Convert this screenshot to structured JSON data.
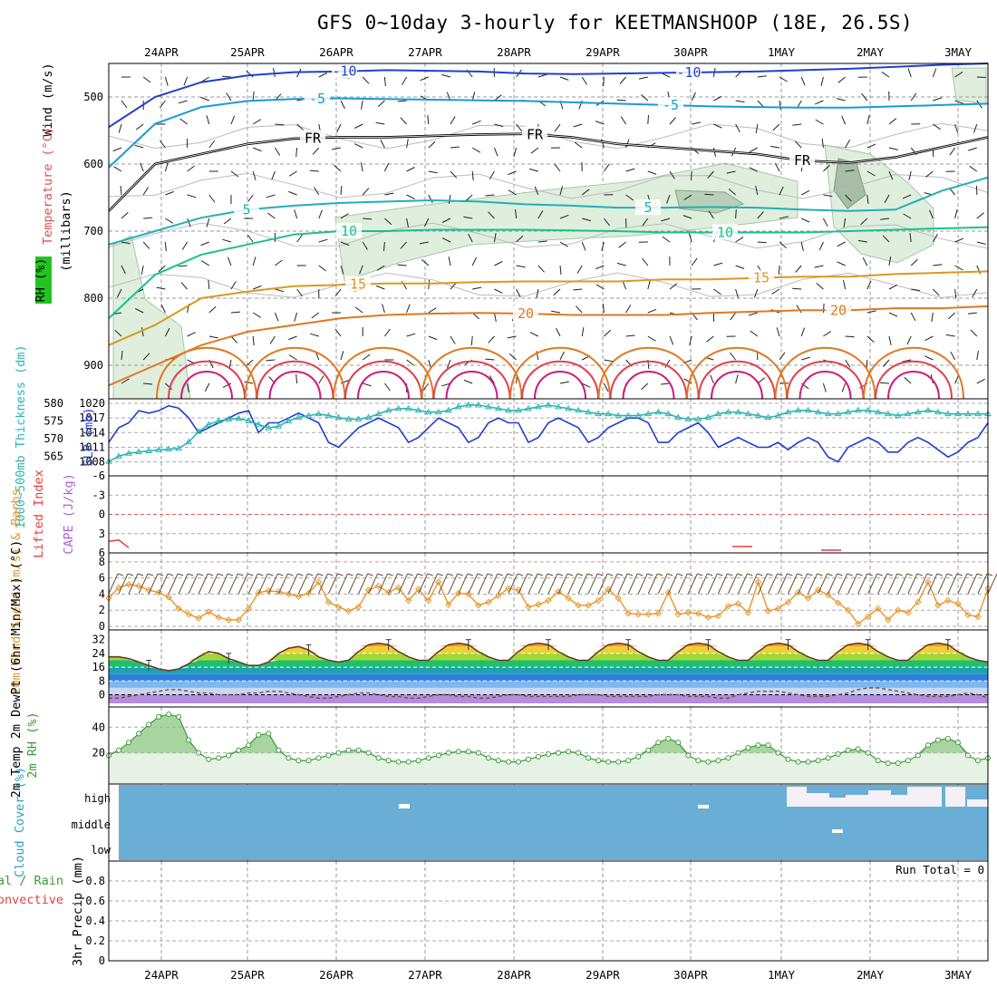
{
  "title": "GFS 0~10day 3-hourly for KEETMANSHOOP (18E, 26.5S)",
  "dates": [
    "24APR",
    "25APR",
    "26APR",
    "27APR",
    "28APR",
    "29APR",
    "30APR",
    "1MAY",
    "2MAY",
    "3MAY"
  ],
  "colors": {
    "slp": "#1f3fcf",
    "thickness": "#2cb5b5",
    "wind": "#e8962a",
    "rh": "#3a9a3a",
    "cloud": "#6aaed6",
    "lifted": "#e04040",
    "cape": "#b060d0"
  },
  "chart_data": [
    {
      "type": "heatmap",
      "name": "upper-air cross-section",
      "panel_labels": [
        "Wind (m/s)",
        "Temperature (°C)",
        "RH (%)",
        "(millibars)"
      ],
      "y": {
        "ticks": [
          500,
          600,
          700,
          800,
          900
        ],
        "lim": [
          450,
          950
        ]
      },
      "contours": [
        {
          "level": "-10",
          "label": "-10",
          "color": "#2040d0",
          "p": [
            545,
            500,
            478,
            468,
            463,
            462,
            460,
            461,
            462,
            465,
            466,
            465,
            464,
            463,
            462,
            460,
            458,
            455,
            452,
            450
          ]
        },
        {
          "level": "-5",
          "label": "-5",
          "color": "#1a9ad8",
          "p": [
            605,
            540,
            515,
            506,
            503,
            502,
            503,
            504,
            505,
            506,
            508,
            510,
            512,
            514,
            515,
            516,
            516,
            514,
            512,
            510
          ]
        },
        {
          "level": "0",
          "label": "FR",
          "color": "#000000",
          "p": [
            670,
            600,
            585,
            570,
            562,
            560,
            560,
            558,
            556,
            555,
            560,
            570,
            575,
            580,
            585,
            595,
            598,
            590,
            575,
            560
          ]
        },
        {
          "level": "5",
          "label": "5",
          "color": "#20b0b8",
          "p": [
            720,
            700,
            680,
            668,
            662,
            658,
            656,
            654,
            656,
            660,
            662,
            665,
            665,
            664,
            665,
            668,
            670,
            668,
            640,
            620
          ]
        },
        {
          "level": "10",
          "label": "10",
          "color": "#1ac090",
          "p": [
            830,
            765,
            735,
            720,
            705,
            700,
            700,
            698,
            698,
            698,
            699,
            700,
            702,
            702,
            702,
            702,
            700,
            698,
            696,
            694
          ]
        },
        {
          "level": "15",
          "label": "15",
          "color": "#d89a20",
          "p": [
            870,
            840,
            800,
            790,
            782,
            780,
            778,
            778,
            776,
            775,
            775,
            775,
            772,
            772,
            770,
            768,
            768,
            764,
            762,
            760
          ]
        },
        {
          "level": "20",
          "label": "20",
          "color": "#e07820",
          "p": [
            930,
            900,
            870,
            850,
            840,
            830,
            825,
            823,
            822,
            823,
            825,
            825,
            825,
            822,
            820,
            818,
            818,
            815,
            815,
            812
          ]
        }
      ]
    },
    {
      "type": "line",
      "name": "SLP and thickness",
      "ylabel_left": "1000~500mb Thickness (dm)",
      "ylabel_right": "SLP (mb)",
      "yticks_thickness": [
        565,
        570,
        575,
        580
      ],
      "yticks_slp": [
        1008,
        1011,
        1014,
        1017,
        1020
      ],
      "ylim_thickness": [
        562,
        580
      ],
      "ylim_slp": [
        1007,
        1020
      ],
      "series": [
        {
          "name": "SLP (mb)",
          "values": [
            1012,
            1015,
            1016,
            1018.5,
            1018,
            1018.5,
            1019.5,
            1019,
            1017,
            1014,
            1015,
            1016,
            1017,
            1018,
            1018.5,
            1014,
            1016,
            1016,
            1017,
            1018,
            1017,
            1016,
            1012,
            1011,
            1013,
            1015,
            1016,
            1017,
            1016,
            1015,
            1012,
            1013,
            1015,
            1017,
            1016,
            1015,
            1012,
            1013,
            1016,
            1017,
            1016,
            1016,
            1012,
            1013,
            1016,
            1017,
            1016,
            1015,
            1012,
            1013,
            1015,
            1016,
            1017,
            1017,
            1016,
            1012,
            1012,
            1014,
            1015,
            1016,
            1014,
            1011,
            1012,
            1013,
            1012,
            1011,
            1011,
            1012,
            1010.5,
            1012,
            1013,
            1012,
            1009,
            1008,
            1011,
            1012,
            1013,
            1012,
            1010,
            1010,
            1012,
            1013,
            1012,
            1010.5,
            1009,
            1010,
            1012,
            1013,
            1016
          ]
        },
        {
          "name": "Thickness (dm)",
          "values": [
            563.5,
            565,
            565.8,
            566.2,
            566.5,
            566.8,
            567,
            567.2,
            569,
            572,
            574,
            575,
            575.5,
            575.7,
            575,
            574,
            573,
            573.5,
            575,
            576,
            576.5,
            577,
            576.5,
            576,
            575.5,
            575.5,
            576,
            577,
            578,
            578.5,
            578.5,
            578,
            577.5,
            577.5,
            578,
            579,
            579.5,
            579.5,
            579,
            578.5,
            578,
            578,
            578.5,
            579,
            579.5,
            579,
            578.5,
            578,
            577.5,
            577,
            577,
            576.5,
            576.5,
            576.5,
            577,
            577.5,
            577,
            576,
            575.5,
            575.5,
            576,
            577,
            577.5,
            577.5,
            577,
            576.5,
            576,
            576.5,
            577.5,
            578,
            578,
            577.5,
            577,
            577,
            577.5,
            578,
            578,
            577.5,
            577,
            576.5,
            577,
            577.5,
            578,
            577.5,
            577,
            577,
            577,
            577,
            577
          ]
        }
      ]
    },
    {
      "type": "line",
      "name": "Lifted index and CAPE",
      "ylabel_left": "Lifted Index",
      "ylabel_right": "CAPE (J/kg)",
      "yticks": [
        -6,
        -3,
        0,
        3,
        6
      ],
      "ylim": [
        -6,
        6
      ],
      "series": [
        {
          "name": "Lifted Index",
          "values": [
            4.2,
            4.0,
            5.2,
            null,
            null,
            null,
            null,
            null,
            null,
            null,
            null,
            null,
            null,
            null,
            null,
            null,
            null,
            null,
            null,
            null,
            null,
            null,
            null,
            null,
            null,
            null,
            null,
            null,
            null,
            null,
            null,
            null,
            null,
            null,
            null,
            null,
            null,
            null,
            null,
            null,
            null,
            null,
            null,
            null,
            null,
            null,
            null,
            null,
            null,
            null,
            null,
            null,
            null,
            null,
            null,
            null,
            null,
            null,
            null,
            null,
            null,
            null,
            null,
            null,
            null,
            null,
            null,
            null,
            null,
            null,
            null,
            null,
            null,
            null,
            null,
            null,
            null,
            null,
            null,
            null,
            null,
            null,
            null,
            null,
            null,
            null,
            null,
            null,
            null
          ]
        }
      ]
    },
    {
      "type": "line",
      "name": "10m wind speed",
      "ylabel": "10m Wind Speed (m/s) & Barbs",
      "yticks": [
        0,
        2,
        4,
        6,
        8
      ],
      "ylim": [
        0,
        9
      ],
      "series": [
        {
          "name": "Wind Speed (m/s)",
          "values": [
            3.5,
            4.8,
            5.2,
            5.0,
            4.5,
            4.2,
            3.6,
            2.2,
            1.5,
            1.0,
            1.8,
            1.1,
            0.8,
            0.8,
            2.2,
            4.2,
            4.4,
            4.3,
            4.0,
            3.7,
            4.1,
            5.5,
            3.0,
            2.4,
            1.9,
            2.4,
            4.5,
            5.0,
            4.2,
            4.8,
            3.2,
            4.6,
            3.2,
            5.5,
            2.7,
            4.1,
            4.0,
            2.6,
            3.0,
            3.8,
            4.7,
            4.5,
            2.4,
            2.7,
            3.2,
            4.3,
            3.5,
            2.6,
            2.6,
            3.2,
            4.6,
            3.5,
            1.6,
            1.5,
            1.5,
            1.6,
            4.2,
            1.5,
            1.7,
            1.6,
            1.1,
            1.3,
            2.5,
            2.8,
            1.7,
            5.5,
            1.9,
            2.2,
            3.0,
            4.2,
            3.5,
            4.5,
            3.9,
            2.9,
            2.0,
            0.3,
            1.2,
            2.2,
            0.8,
            2.0,
            1.7,
            3.0,
            5.5,
            2.6,
            3.2,
            2.8,
            1.4,
            1.2,
            4.7
          ]
        }
      ]
    },
    {
      "type": "line",
      "name": "2m temperature and dewpoint",
      "ylabel": "2m Temp 2m DewPt (6hr Min/Max) (°C)",
      "yticks": [
        0,
        8,
        16,
        24,
        32
      ],
      "ylim": [
        -5,
        35
      ],
      "series": [
        {
          "name": "2m Temp",
          "values": [
            22,
            22,
            21,
            19,
            17,
            15,
            14,
            15,
            18,
            22,
            25,
            24,
            21,
            19,
            17,
            17,
            19,
            24,
            27,
            28,
            26,
            22,
            20,
            19,
            20,
            25,
            29,
            30,
            29,
            25,
            22,
            20,
            20,
            25,
            29,
            30,
            29,
            25,
            22,
            20,
            20,
            25,
            29,
            30,
            29,
            25,
            22,
            20,
            20,
            25,
            29,
            30,
            29,
            25,
            22,
            20,
            20,
            25,
            29,
            30,
            29,
            25,
            22,
            20,
            20,
            25,
            29,
            30,
            29,
            25,
            22,
            20,
            20,
            25,
            29,
            30,
            29,
            25,
            22,
            20,
            20,
            25,
            29,
            30,
            29,
            25,
            22,
            20,
            19
          ]
        },
        {
          "name": "2m DewPt",
          "values": [
            -2,
            -2,
            -1,
            0,
            1,
            2,
            3,
            3,
            2,
            1,
            1,
            0,
            0,
            0,
            1,
            1,
            2,
            2,
            1,
            0,
            -1,
            -2,
            -2,
            -1,
            0,
            1,
            1,
            0,
            -1,
            -1,
            -2,
            -2,
            -1,
            0,
            0,
            -1,
            -1,
            -2,
            -2,
            -1,
            0,
            0,
            -1,
            -1,
            -1,
            -1,
            -1,
            0,
            0,
            0,
            -1,
            -1,
            -1,
            -1,
            -1,
            0,
            0,
            0,
            -1,
            -1,
            -1,
            -2,
            -2,
            0,
            1,
            2,
            2,
            2,
            1,
            0,
            -1,
            -1,
            -1,
            0,
            1,
            3,
            4,
            4,
            3,
            2,
            1,
            0,
            -1,
            -1,
            -1,
            0,
            1,
            0,
            -2
          ]
        }
      ]
    },
    {
      "type": "area",
      "name": "2m RH",
      "ylabel": "2m RH (%)",
      "yticks": [
        20,
        40
      ],
      "ylim": [
        0,
        55
      ],
      "series": [
        {
          "name": "2m RH (%)",
          "values": [
            18,
            22,
            28,
            35,
            42,
            48,
            50,
            48,
            30,
            20,
            15,
            16,
            18,
            22,
            26,
            34,
            35,
            22,
            16,
            14,
            14,
            16,
            18,
            20,
            22,
            22,
            20,
            16,
            14,
            13,
            13,
            14,
            16,
            18,
            20,
            21,
            21,
            20,
            16,
            14,
            13,
            13,
            15,
            17,
            19,
            20,
            21,
            20,
            16,
            14,
            13,
            13,
            14,
            17,
            22,
            28,
            31,
            28,
            18,
            14,
            13,
            14,
            16,
            20,
            24,
            26,
            26,
            20,
            15,
            13,
            13,
            14,
            16,
            19,
            22,
            23,
            20,
            14,
            12,
            12,
            14,
            18,
            26,
            30,
            31,
            28,
            18,
            14,
            16
          ]
        }
      ]
    },
    {
      "type": "heatmap",
      "name": "Cloud cover",
      "ylabel": "Cloud Cover (%)",
      "levels": [
        "high",
        "middle",
        "low"
      ]
    },
    {
      "type": "bar",
      "name": "3hr precipitation",
      "ylabel": "3hr Precip (mm)",
      "legend": [
        "Total / Rain",
        "Convective"
      ],
      "yticks": [
        0,
        0.2,
        0.4,
        0.6,
        0.8
      ],
      "ylim": [
        0,
        1.0
      ],
      "run_total_label": "Run Total = 0",
      "values": []
    }
  ]
}
